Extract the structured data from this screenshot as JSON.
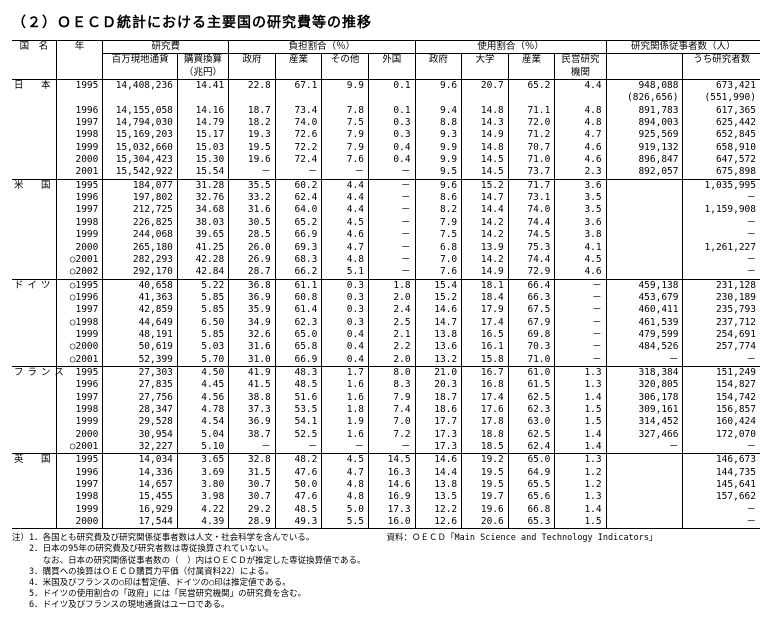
{
  "title": "（２）ＯＥＣＤ統計における主要国の研究費等の推移",
  "header": {
    "group_research": "研究費",
    "group_burden": "負担割合（％）",
    "group_use": "使用割合（％）",
    "group_researchers": "研究関係従事者数（人）",
    "country": "国　名",
    "year": "年",
    "col1": "百万現地通貨",
    "col2": "購買換算（兆円）",
    "col3": "政府",
    "col4": "産業",
    "col5": "その他",
    "col6": "外国",
    "col7": "政府",
    "col8": "大学",
    "col9": "産業",
    "col10": "民営研究機関",
    "col11": "",
    "col12": "うち研究者数"
  },
  "countries": [
    {
      "name": "日　本",
      "rows": [
        {
          "y": "1995",
          "v": [
            "14,408,236",
            "14.41",
            "22.8",
            "67.1",
            "9.9",
            "0.1",
            "9.6",
            "20.7",
            "65.2",
            "4.4",
            "948,088",
            "673,421"
          ]
        },
        {
          "y": "",
          "v": [
            "",
            "",
            "",
            "",
            "",
            "",
            "",
            "",
            "",
            "",
            "(826,656)",
            "(551,990)"
          ]
        },
        {
          "y": "1996",
          "v": [
            "14,155,058",
            "14.16",
            "18.7",
            "73.4",
            "7.8",
            "0.1",
            "9.4",
            "14.8",
            "71.1",
            "4.8",
            "891,783",
            "617,365"
          ]
        },
        {
          "y": "1997",
          "v": [
            "14,794,030",
            "14.79",
            "18.2",
            "74.0",
            "7.5",
            "0.3",
            "8.8",
            "14.3",
            "72.0",
            "4.8",
            "894,003",
            "625,442"
          ]
        },
        {
          "y": "1998",
          "v": [
            "15,169,203",
            "15.17",
            "19.3",
            "72.6",
            "7.9",
            "0.3",
            "9.3",
            "14.9",
            "71.2",
            "4.7",
            "925,569",
            "652,845"
          ]
        },
        {
          "y": "1999",
          "v": [
            "15,032,660",
            "15.03",
            "19.5",
            "72.2",
            "7.9",
            "0.4",
            "9.9",
            "14.8",
            "70.7",
            "4.6",
            "919,132",
            "658,910"
          ]
        },
        {
          "y": "2000",
          "v": [
            "15,304,423",
            "15.30",
            "19.6",
            "72.4",
            "7.6",
            "0.4",
            "9.9",
            "14.5",
            "71.0",
            "4.6",
            "896,847",
            "647,572"
          ]
        },
        {
          "y": "2001",
          "v": [
            "15,542,922",
            "15.54",
            "－",
            "－",
            "－",
            "－",
            "9.5",
            "14.5",
            "73.7",
            "2.3",
            "892,057",
            "675,898"
          ]
        }
      ]
    },
    {
      "name": "米　国",
      "rows": [
        {
          "y": "1995",
          "v": [
            "184,077",
            "31.28",
            "35.5",
            "60.2",
            "4.4",
            "－",
            "9.6",
            "15.2",
            "71.7",
            "3.6",
            "",
            "1,035,995"
          ]
        },
        {
          "y": "1996",
          "v": [
            "197,802",
            "32.76",
            "33.2",
            "62.4",
            "4.4",
            "－",
            "8.6",
            "14.7",
            "73.1",
            "3.5",
            "",
            "－"
          ]
        },
        {
          "y": "1997",
          "v": [
            "212,725",
            "34.68",
            "31.6",
            "64.0",
            "4.4",
            "－",
            "8.2",
            "14.4",
            "74.0",
            "3.5",
            "",
            "1,159,908"
          ]
        },
        {
          "y": "1998",
          "v": [
            "226,825",
            "38.03",
            "30.5",
            "65.2",
            "4.5",
            "－",
            "7.9",
            "14.2",
            "74.4",
            "3.6",
            "",
            "－"
          ]
        },
        {
          "y": "1999",
          "v": [
            "244,068",
            "39.65",
            "28.5",
            "66.9",
            "4.6",
            "－",
            "7.5",
            "14.2",
            "74.5",
            "3.8",
            "",
            "－"
          ]
        },
        {
          "y": "2000",
          "v": [
            "265,180",
            "41.25",
            "26.0",
            "69.3",
            "4.7",
            "－",
            "6.8",
            "13.9",
            "75.3",
            "4.1",
            "",
            "1,261,227"
          ]
        },
        {
          "y": "○2001",
          "v": [
            "282,293",
            "42.28",
            "26.9",
            "68.3",
            "4.8",
            "－",
            "7.0",
            "14.2",
            "74.4",
            "4.5",
            "",
            "－"
          ]
        },
        {
          "y": "○2002",
          "v": [
            "292,170",
            "42.84",
            "28.7",
            "66.2",
            "5.1",
            "－",
            "7.6",
            "14.9",
            "72.9",
            "4.6",
            "",
            "－"
          ]
        }
      ]
    },
    {
      "name": "ドイツ",
      "rows": [
        {
          "y": "○1995",
          "v": [
            "40,658",
            "5.22",
            "36.8",
            "61.1",
            "0.3",
            "1.8",
            "15.4",
            "18.1",
            "66.4",
            "－",
            "459,138",
            "231,128"
          ]
        },
        {
          "y": "○1996",
          "v": [
            "41,363",
            "5.85",
            "36.9",
            "60.8",
            "0.3",
            "2.0",
            "15.2",
            "18.4",
            "66.3",
            "－",
            "453,679",
            "230,189"
          ]
        },
        {
          "y": "1997",
          "v": [
            "42,859",
            "5.85",
            "35.9",
            "61.4",
            "0.3",
            "2.4",
            "14.6",
            "17.9",
            "67.5",
            "－",
            "460,411",
            "235,793"
          ]
        },
        {
          "y": "○1998",
          "v": [
            "44,649",
            "6.50",
            "34.9",
            "62.3",
            "0.3",
            "2.5",
            "14.7",
            "17.4",
            "67.9",
            "－",
            "461,539",
            "237,712"
          ]
        },
        {
          "y": "1999",
          "v": [
            "48,191",
            "5.85",
            "32.6",
            "65.0",
            "0.4",
            "2.1",
            "13.8",
            "16.5",
            "69.8",
            "－",
            "479,599",
            "254,691"
          ]
        },
        {
          "y": "○2000",
          "v": [
            "50,619",
            "5.03",
            "31.6",
            "65.8",
            "0.4",
            "2.2",
            "13.6",
            "16.1",
            "70.3",
            "－",
            "484,526",
            "257,774"
          ]
        },
        {
          "y": "○2001",
          "v": [
            "52,399",
            "5.70",
            "31.0",
            "66.9",
            "0.4",
            "2.0",
            "13.2",
            "15.8",
            "71.0",
            "－",
            "－",
            "－"
          ]
        }
      ]
    },
    {
      "name": "フランス",
      "rows": [
        {
          "y": "1995",
          "v": [
            "27,303",
            "4.50",
            "41.9",
            "48.3",
            "1.7",
            "8.0",
            "21.0",
            "16.7",
            "61.0",
            "1.3",
            "318,384",
            "151,249"
          ]
        },
        {
          "y": "1996",
          "v": [
            "27,835",
            "4.45",
            "41.5",
            "48.5",
            "1.6",
            "8.3",
            "20.3",
            "16.8",
            "61.5",
            "1.3",
            "320,805",
            "154,827"
          ]
        },
        {
          "y": "1997",
          "v": [
            "27,756",
            "4.56",
            "38.8",
            "51.6",
            "1.6",
            "7.9",
            "18.7",
            "17.4",
            "62.5",
            "1.4",
            "306,178",
            "154,742"
          ]
        },
        {
          "y": "1998",
          "v": [
            "28,347",
            "4.78",
            "37.3",
            "53.5",
            "1.8",
            "7.4",
            "18.6",
            "17.6",
            "62.3",
            "1.5",
            "309,161",
            "156,857"
          ]
        },
        {
          "y": "1999",
          "v": [
            "29,528",
            "4.54",
            "36.9",
            "54.1",
            "1.9",
            "7.0",
            "17.7",
            "17.8",
            "63.0",
            "1.5",
            "314,452",
            "160,424"
          ]
        },
        {
          "y": "2000",
          "v": [
            "30,954",
            "5.04",
            "38.7",
            "52.5",
            "1.6",
            "7.2",
            "17.3",
            "18.8",
            "62.5",
            "1.4",
            "327,466",
            "172,070"
          ]
        },
        {
          "y": "○2001",
          "v": [
            "32,227",
            "5.10",
            "－",
            "－",
            "－",
            "－",
            "17.3",
            "18.5",
            "62.4",
            "1.4",
            "－",
            "－"
          ]
        }
      ]
    },
    {
      "name": "英　国",
      "rows": [
        {
          "y": "1995",
          "v": [
            "14,034",
            "3.65",
            "32.8",
            "48.2",
            "4.5",
            "14.5",
            "14.6",
            "19.2",
            "65.0",
            "1.3",
            "",
            "146,673"
          ]
        },
        {
          "y": "1996",
          "v": [
            "14,336",
            "3.69",
            "31.5",
            "47.6",
            "4.7",
            "16.3",
            "14.4",
            "19.5",
            "64.9",
            "1.2",
            "",
            "144,735"
          ]
        },
        {
          "y": "1997",
          "v": [
            "14,657",
            "3.80",
            "30.7",
            "50.0",
            "4.8",
            "14.6",
            "13.8",
            "19.5",
            "65.5",
            "1.2",
            "",
            "145,641"
          ]
        },
        {
          "y": "1998",
          "v": [
            "15,455",
            "3.98",
            "30.7",
            "47.6",
            "4.8",
            "16.9",
            "13.5",
            "19.7",
            "65.6",
            "1.3",
            "",
            "157,662"
          ]
        },
        {
          "y": "1999",
          "v": [
            "16,929",
            "4.22",
            "29.2",
            "48.5",
            "5.0",
            "17.3",
            "12.2",
            "19.6",
            "66.8",
            "1.4",
            "",
            "－"
          ]
        },
        {
          "y": "2000",
          "v": [
            "17,544",
            "4.39",
            "28.9",
            "49.3",
            "5.5",
            "16.0",
            "12.6",
            "20.6",
            "65.3",
            "1.5",
            "",
            "－"
          ]
        }
      ]
    }
  ],
  "notes_left": [
    "注）1．各国とも研究費及び研究関係従事者数は人文・社会科学を含んでいる。",
    "　　2．日本の95年の研究費及び研究者数は専従換算されていない。",
    "　　　 なお、日本の研究関係従事者数の（　）内はＯＥＣＤが推定した専従換算値である。",
    "　　3．購買への換算はＯＥＣＤ購買力平価（付属資料22）による。",
    "　　4．米国及びフランスの○印は暫定値、ドイツの○印は推定値である。",
    "　　5．ドイツの使用割合の「政府」には「民営研究機関」の研究費を含む。",
    "　　6．ドイツ及びフランスの現地通貨はユーロである。"
  ],
  "notes_right": "資料：ＯＥＣＤ「Main Science and Technology Indicators」"
}
